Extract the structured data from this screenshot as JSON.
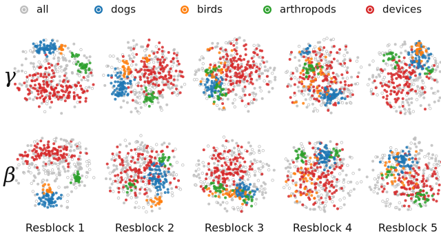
{
  "legend": [
    {
      "label": "all",
      "color": "#bdbdbd"
    },
    {
      "label": "dogs",
      "color": "#1f77b4"
    },
    {
      "label": "birds",
      "color": "#ff7f0e"
    },
    {
      "label": "arthropods",
      "color": "#2ca02c"
    },
    {
      "label": "devices",
      "color": "#d62728"
    }
  ],
  "rows": [
    "γ",
    "β"
  ],
  "columns": [
    "Resblock 1",
    "Resblock 2",
    "Resblock 3",
    "Resblock 4",
    "Resblock 5"
  ]
}
